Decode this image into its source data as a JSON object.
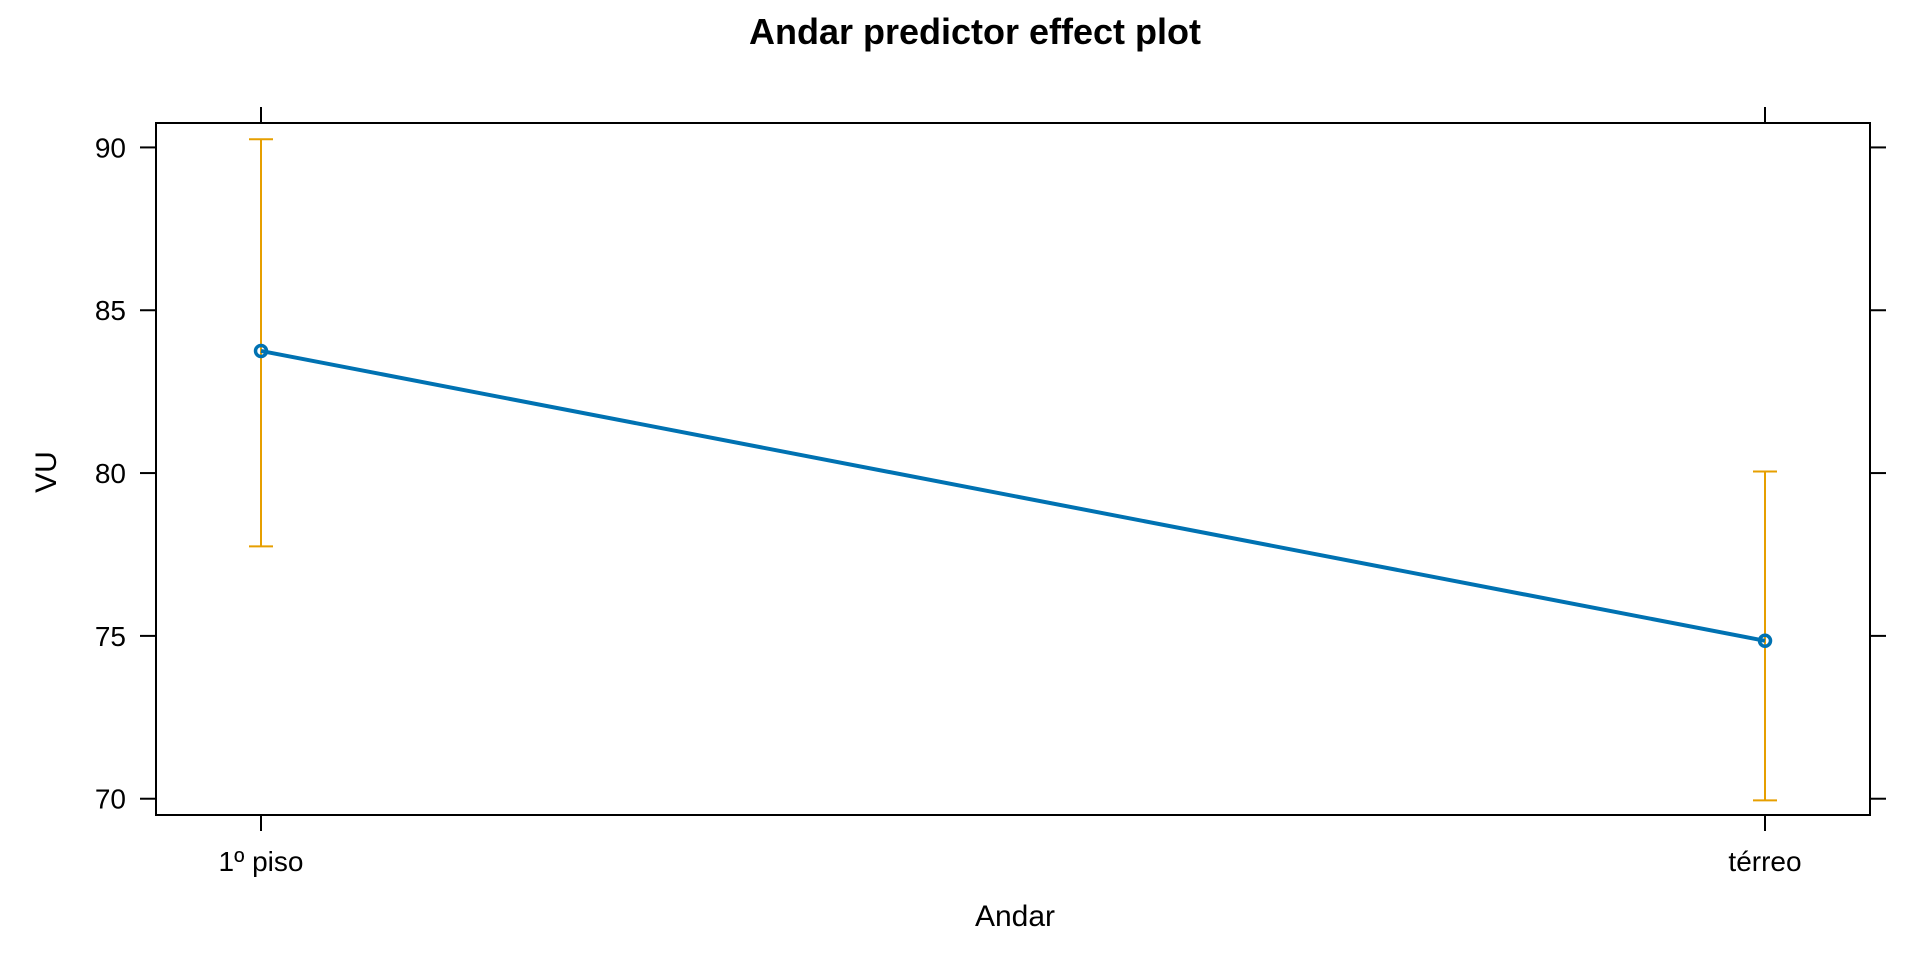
{
  "chart_data": {
    "type": "line",
    "title": "Andar predictor effect plot",
    "xlabel": "Andar",
    "ylabel": "VU",
    "categories": [
      "1º piso",
      "térreo"
    ],
    "series": [
      {
        "values": [
          83.75,
          74.85
        ],
        "lower": [
          77.75,
          69.95
        ],
        "upper": [
          90.25,
          80.05
        ]
      }
    ],
    "ylim": [
      69.5,
      90.75
    ],
    "y_ticks": [
      70,
      75,
      80,
      85,
      90
    ],
    "grid": false,
    "colors": {
      "line": "#0072b2",
      "error_bars": "#e69f00",
      "axes": "#000000"
    }
  }
}
